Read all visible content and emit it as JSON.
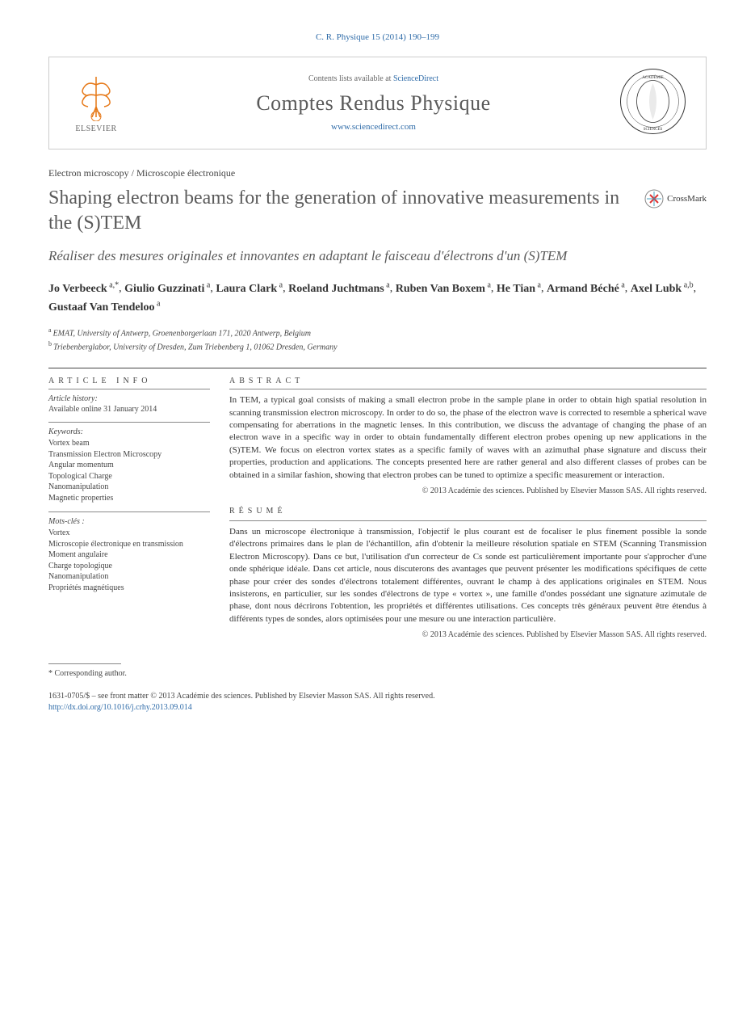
{
  "citation": "C. R. Physique 15 (2014) 190–199",
  "header": {
    "publisher": "ELSEVIER",
    "contents_prefix": "Contents lists available at ",
    "contents_link": "ScienceDirect",
    "journal_name": "Comptes Rendus Physique",
    "journal_url": "www.sciencedirect.com"
  },
  "section_label": "Electron microscopy / Microscopie électronique",
  "title_en": "Shaping electron beams for the generation of innovative measurements in the (S)TEM",
  "crossmark_label": "CrossMark",
  "title_fr": "Réaliser des mesures originales et innovantes en adaptant le faisceau d'électrons d'un (S)TEM",
  "authors": [
    {
      "name": "Jo Verbeeck",
      "aff": "a,",
      "corr": "*"
    },
    {
      "name": "Giulio Guzzinati",
      "aff": "a"
    },
    {
      "name": "Laura Clark",
      "aff": "a"
    },
    {
      "name": "Roeland Juchtmans",
      "aff": "a"
    },
    {
      "name": "Ruben Van Boxem",
      "aff": "a"
    },
    {
      "name": "He Tian",
      "aff": "a"
    },
    {
      "name": "Armand Béché",
      "aff": "a"
    },
    {
      "name": "Axel Lubk",
      "aff": "a,b"
    },
    {
      "name": "Gustaaf Van Tendeloo",
      "aff": "a"
    }
  ],
  "affiliations": [
    {
      "sup": "a",
      "text": "EMAT, University of Antwerp, Groenenborgerlaan 171, 2020 Antwerp, Belgium"
    },
    {
      "sup": "b",
      "text": "Triebenberglabor, University of Dresden, Zum Triebenberg 1, 01062 Dresden, Germany"
    }
  ],
  "info_heading": "ARTICLE INFO",
  "history_heading": "Article history:",
  "history_text": "Available online 31 January 2014",
  "keywords_heading": "Keywords:",
  "keywords": [
    "Vortex beam",
    "Transmission Electron Microscopy",
    "Angular momentum",
    "Topological Charge",
    "Nanomanipulation",
    "Magnetic properties"
  ],
  "motscles_heading": "Mots-clés :",
  "motscles": [
    "Vortex",
    "Microscopie électronique en transmission",
    "Moment angulaire",
    "Charge topologique",
    "Nanomanipulation",
    "Propriétés magnétiques"
  ],
  "abstract_heading": "ABSTRACT",
  "abstract_text": "In TEM, a typical goal consists of making a small electron probe in the sample plane in order to obtain high spatial resolution in scanning transmission electron microscopy. In order to do so, the phase of the electron wave is corrected to resemble a spherical wave compensating for aberrations in the magnetic lenses. In this contribution, we discuss the advantage of changing the phase of an electron wave in a specific way in order to obtain fundamentally different electron probes opening up new applications in the (S)TEM. We focus on electron vortex states as a specific family of waves with an azimuthal phase signature and discuss their properties, production and applications. The concepts presented here are rather general and also different classes of probes can be obtained in a similar fashion, showing that electron probes can be tuned to optimize a specific measurement or interaction.",
  "abstract_copyright": "© 2013 Académie des sciences. Published by Elsevier Masson SAS. All rights reserved.",
  "resume_heading": "RÉSUMÉ",
  "resume_text": "Dans un microscope électronique à transmission, l'objectif le plus courant est de focaliser le plus finement possible la sonde d'électrons primaires dans le plan de l'échantillon, afin d'obtenir la meilleure résolution spatiale en STEM (Scanning Transmission Electron Microscopy). Dans ce but, l'utilisation d'un correcteur de Cs sonde est particulièrement importante pour s'approcher d'une onde sphérique idéale. Dans cet article, nous discuterons des avantages que peuvent présenter les modifications spécifiques de cette phase pour créer des sondes d'électrons totalement différentes, ouvrant le champ à des applications originales en STEM. Nous insisterons, en particulier, sur les sondes d'électrons de type « vortex », une famille d'ondes possédant une signature azimutale de phase, dont nous décrirons l'obtention, les propriétés et différentes utilisations. Ces concepts très généraux peuvent être étendus à différents types de sondes, alors optimisées pour une mesure ou une interaction particulière.",
  "resume_copyright": "© 2013 Académie des sciences. Published by Elsevier Masson SAS. All rights reserved.",
  "corresponding_note": "* Corresponding author.",
  "footer_issn": "1631-0705/$ – see front matter © 2013 Académie des sciences. Published by Elsevier Masson SAS. All rights reserved.",
  "footer_doi": "http://dx.doi.org/10.1016/j.crhy.2013.09.014",
  "colors": {
    "link": "#2e6ba8",
    "text": "#333333",
    "muted": "#666666",
    "border": "#cccccc"
  }
}
